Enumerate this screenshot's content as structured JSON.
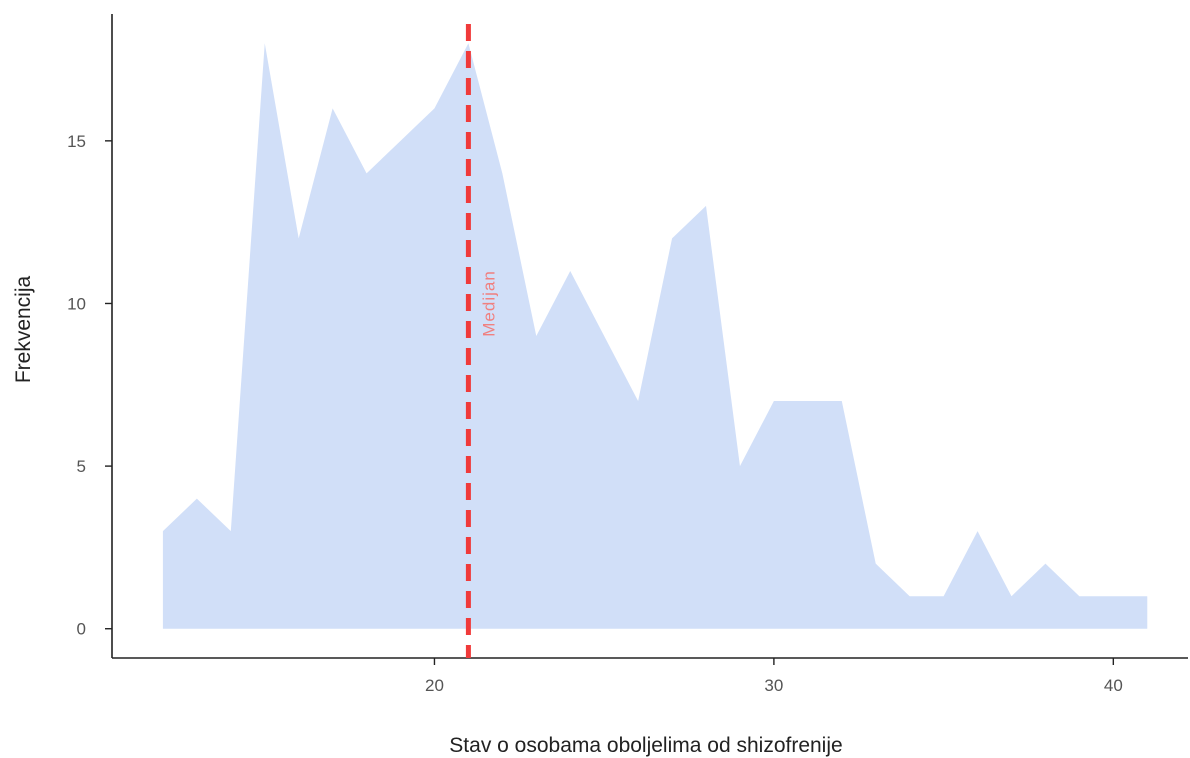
{
  "chart_data": {
    "type": "area",
    "title": "",
    "xlabel": "Stav o osobama oboljelima od shizofrenije",
    "ylabel": "Frekvencija",
    "xlim": [
      10.5,
      42.2
    ],
    "ylim": [
      -0.9,
      18.9
    ],
    "xticks": [
      20,
      30,
      40
    ],
    "yticks": [
      0,
      5,
      10,
      15
    ],
    "grid": false,
    "legend": "none",
    "fill_color": "#d1dff8",
    "median_line": {
      "x": 21,
      "label": "Medijan",
      "color": "#f03a3a",
      "label_color": "#f08080"
    },
    "x": [
      12,
      13,
      14,
      15,
      16,
      17,
      18,
      19,
      20,
      21,
      22,
      23,
      24,
      25,
      26,
      27,
      28,
      29,
      30,
      31,
      32,
      33,
      34,
      35,
      36,
      37,
      38,
      39,
      40,
      41
    ],
    "y": [
      3,
      4,
      3,
      18,
      12,
      16,
      14,
      15,
      16,
      18,
      14,
      9,
      11,
      9,
      7,
      12,
      13,
      5,
      7,
      7,
      7,
      2,
      1,
      1,
      3,
      1,
      2,
      1,
      1,
      1
    ]
  }
}
